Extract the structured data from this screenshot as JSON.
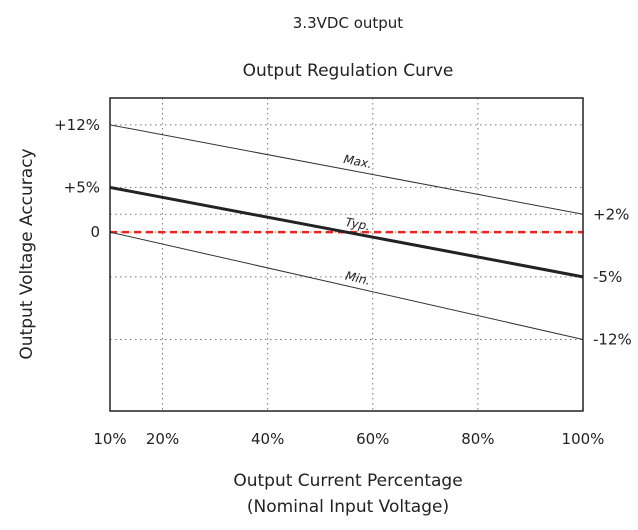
{
  "chart_data": {
    "type": "line",
    "supertitle": "3.3VDC output",
    "title": "Output Regulation Curve",
    "xlabel_line1": "Output Current Percentage",
    "xlabel_line2": "(Nominal Input Voltage)",
    "ylabel": "Output Voltage Accuracy",
    "xlim": [
      10,
      100
    ],
    "ylim": [
      -20,
      15
    ],
    "x_ticks": [
      {
        "value": 10,
        "label": "10%"
      },
      {
        "value": 20,
        "label": "20%"
      },
      {
        "value": 40,
        "label": "40%"
      },
      {
        "value": 60,
        "label": "60%"
      },
      {
        "value": 80,
        "label": "80%"
      },
      {
        "value": 100,
        "label": "100%"
      }
    ],
    "y_ticks_left": [
      {
        "value": 12,
        "label": "+12%"
      },
      {
        "value": 5,
        "label": "+5%"
      },
      {
        "value": 0,
        "label": "0"
      }
    ],
    "y_ticks_right": [
      {
        "value": 2,
        "label": "+2%"
      },
      {
        "value": -5,
        "label": "-5%"
      },
      {
        "value": -12,
        "label": "-12%"
      }
    ],
    "grid": true,
    "series": [
      {
        "name": "Max.",
        "x": [
          10,
          100
        ],
        "y": [
          12,
          2
        ],
        "color": "#333333",
        "width": 1,
        "dash": false
      },
      {
        "name": "Typ.",
        "x": [
          10,
          100
        ],
        "y": [
          5,
          -5
        ],
        "color": "#222222",
        "width": 3,
        "dash": false
      },
      {
        "name": "Min.",
        "x": [
          10,
          100
        ],
        "y": [
          0,
          -12
        ],
        "color": "#333333",
        "width": 1,
        "dash": false
      }
    ],
    "reference_line": {
      "y": 0,
      "color": "#e8251f"
    }
  }
}
